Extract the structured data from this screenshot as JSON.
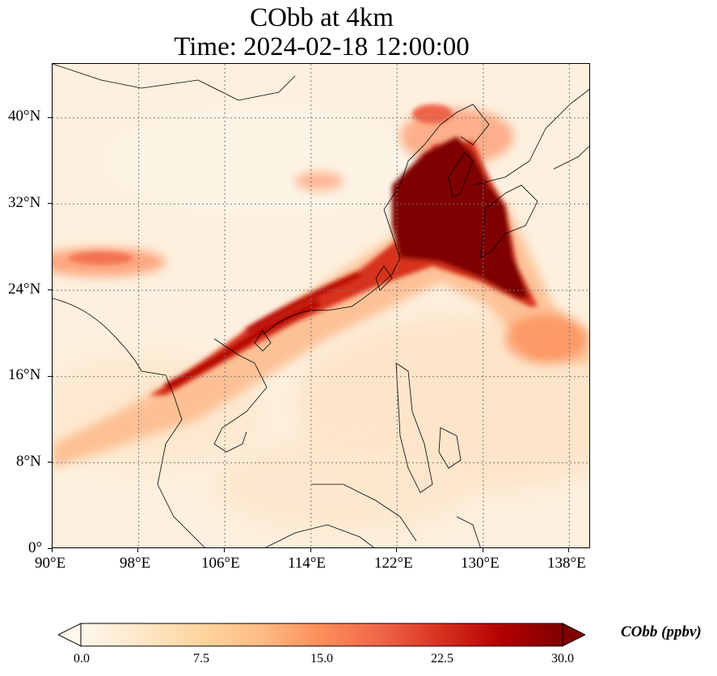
{
  "title": {
    "line1": "CObb at 4km",
    "line2": "Time: 2024-02-18 12:00:00"
  },
  "axes": {
    "x_ticks": [
      "90°E",
      "98°E",
      "106°E",
      "114°E",
      "122°E",
      "130°E",
      "138°E"
    ],
    "y_ticks": [
      "0°",
      "8°N",
      "16°N",
      "24°N",
      "32°N",
      "40°N"
    ],
    "lon_range": [
      90,
      140
    ],
    "lat_range": [
      0,
      45
    ],
    "grid": "dotted"
  },
  "colorbar": {
    "label": "CObb (ppbv)",
    "ticks": [
      "0.0",
      "7.5",
      "15.0",
      "22.5",
      "30.0"
    ],
    "range": [
      0,
      30
    ],
    "extend": "both",
    "colormap": [
      "#fff7ec",
      "#fee8c8",
      "#fdd49e",
      "#fdbb84",
      "#fc8d59",
      "#ef6548",
      "#d7301f",
      "#b30000",
      "#7f0000"
    ]
  },
  "colors": {
    "background_low": "#fdf0de",
    "plume_high": "#7f0000",
    "coastline": "#000000",
    "grid": "#777777"
  }
}
